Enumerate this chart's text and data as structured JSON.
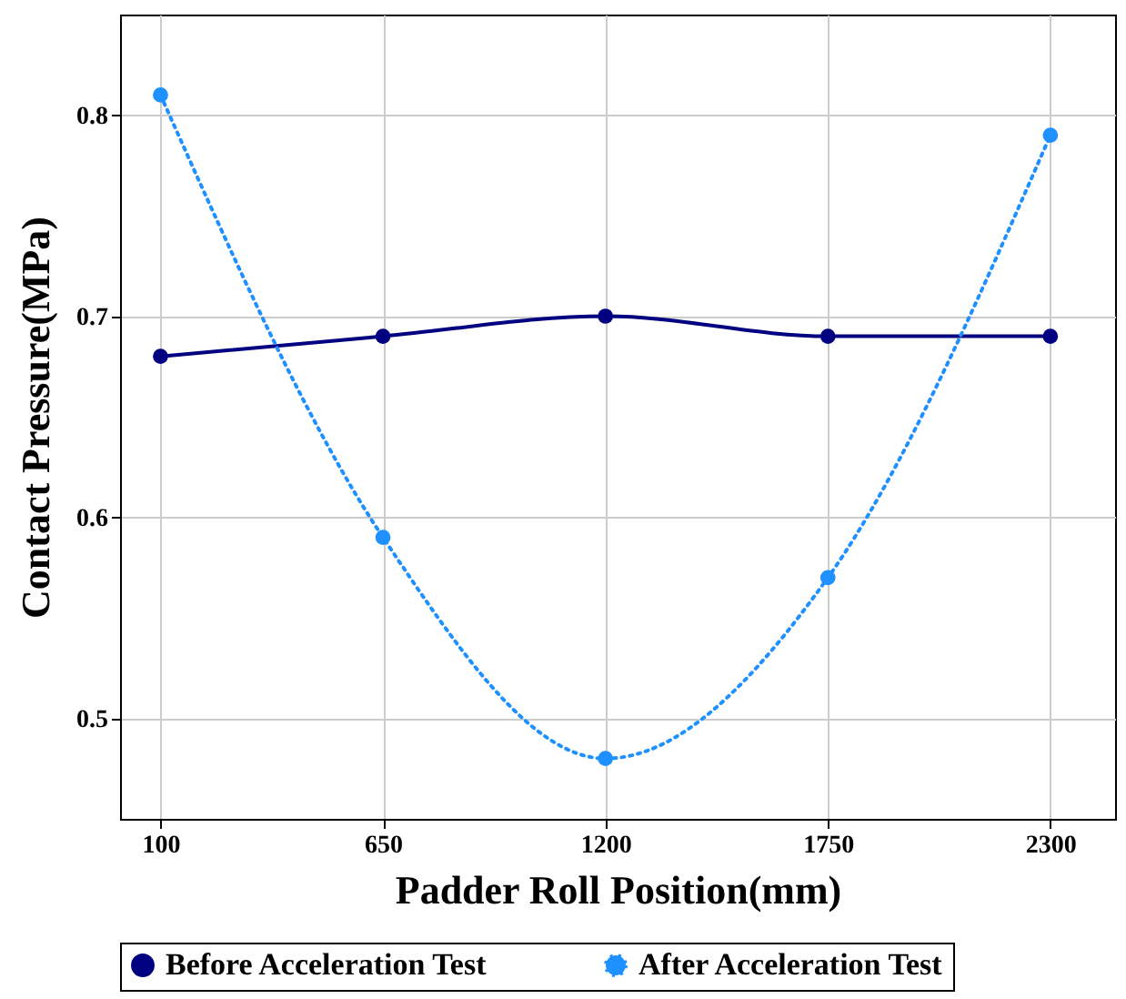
{
  "chart_data": {
    "type": "line",
    "xlabel": "Padder Roll Position(mm)",
    "ylabel": "Contact Pressure(MPa)",
    "x": [
      100,
      650,
      1200,
      1750,
      2300
    ],
    "series": [
      {
        "name": "Before Acceleration Test",
        "color": "#000080",
        "values": [
          0.68,
          0.69,
          0.7,
          0.69,
          0.69
        ],
        "line_style": "solid"
      },
      {
        "name": "After Acceleration Test",
        "color": "#1e90ff",
        "values": [
          0.81,
          0.59,
          0.48,
          0.57,
          0.79
        ],
        "line_style": "dotted"
      }
    ],
    "xlim": [
      0,
      2460
    ],
    "xticks": [
      100,
      650,
      1200,
      1750,
      2300
    ],
    "ylim": [
      0.45,
      0.85
    ],
    "yticks": [
      0.5,
      0.6,
      0.7,
      0.8
    ],
    "grid": true,
    "legend": "bottom",
    "marker": "circle"
  }
}
